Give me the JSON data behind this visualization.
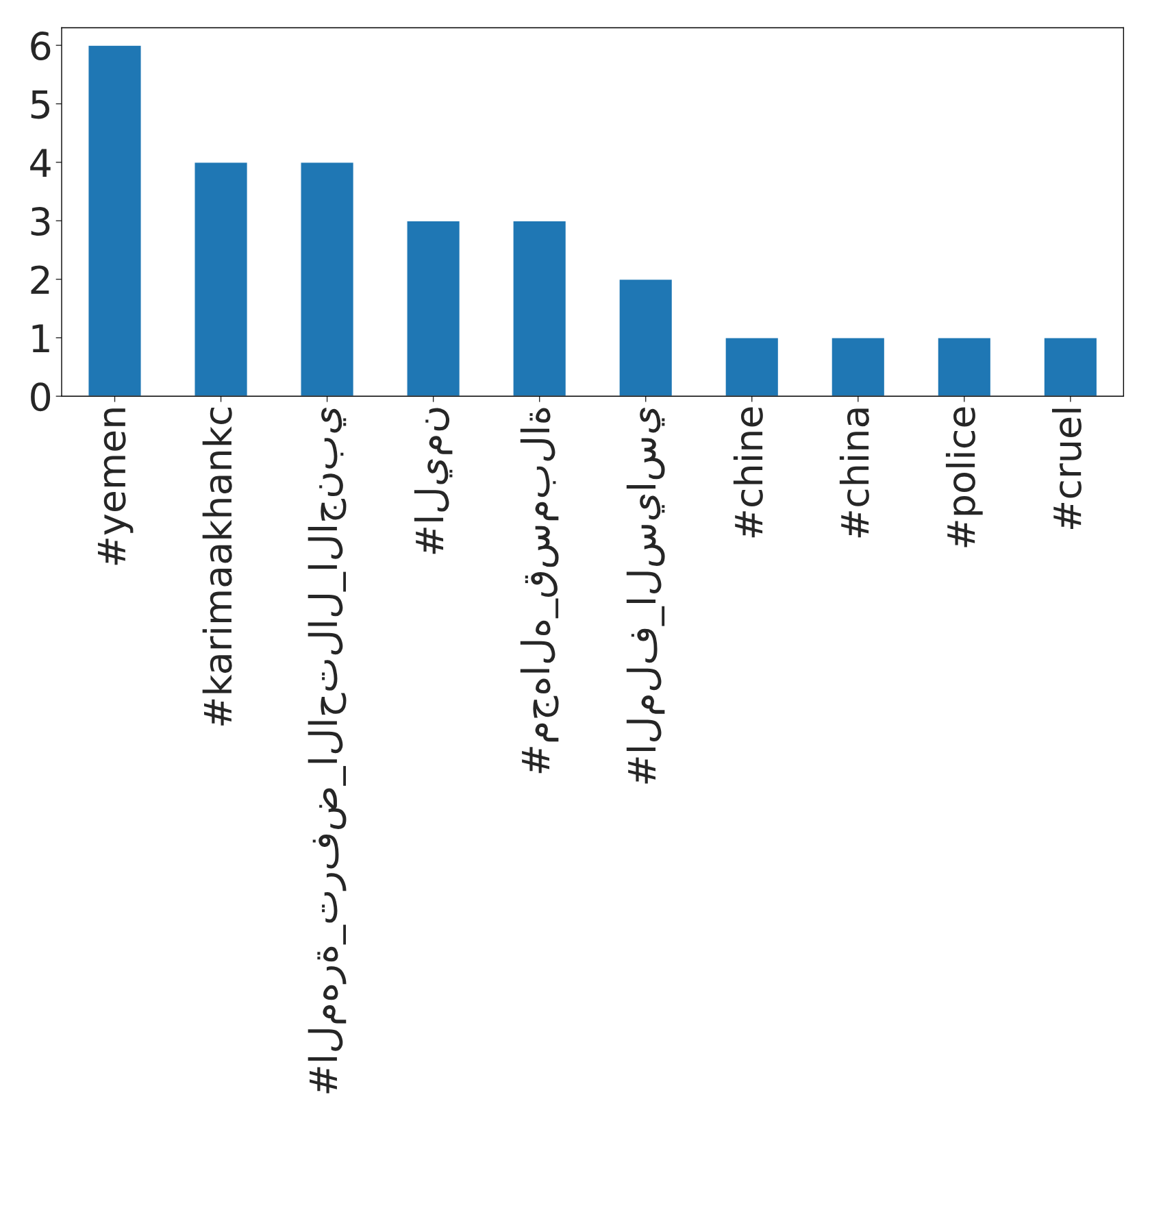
{
  "chart_data": {
    "type": "bar",
    "categories": [
      "#yemen",
      "#karimaakhankc",
      "#المهرة_ترفض_الاحتلال_الاجنبي",
      "#اليمن",
      "#مجهاله_قسمبلاة",
      "#الملف_السياسي",
      "#chine",
      "#china",
      "#police",
      "#cruel"
    ],
    "values": [
      6,
      4,
      4,
      3,
      3,
      2,
      1,
      1,
      1,
      1
    ],
    "color": "#1f77b4",
    "ylim": [
      0,
      6.3
    ],
    "yticks": [
      0,
      1,
      2,
      3,
      4,
      5,
      6
    ],
    "grid": false,
    "legend": false
  }
}
